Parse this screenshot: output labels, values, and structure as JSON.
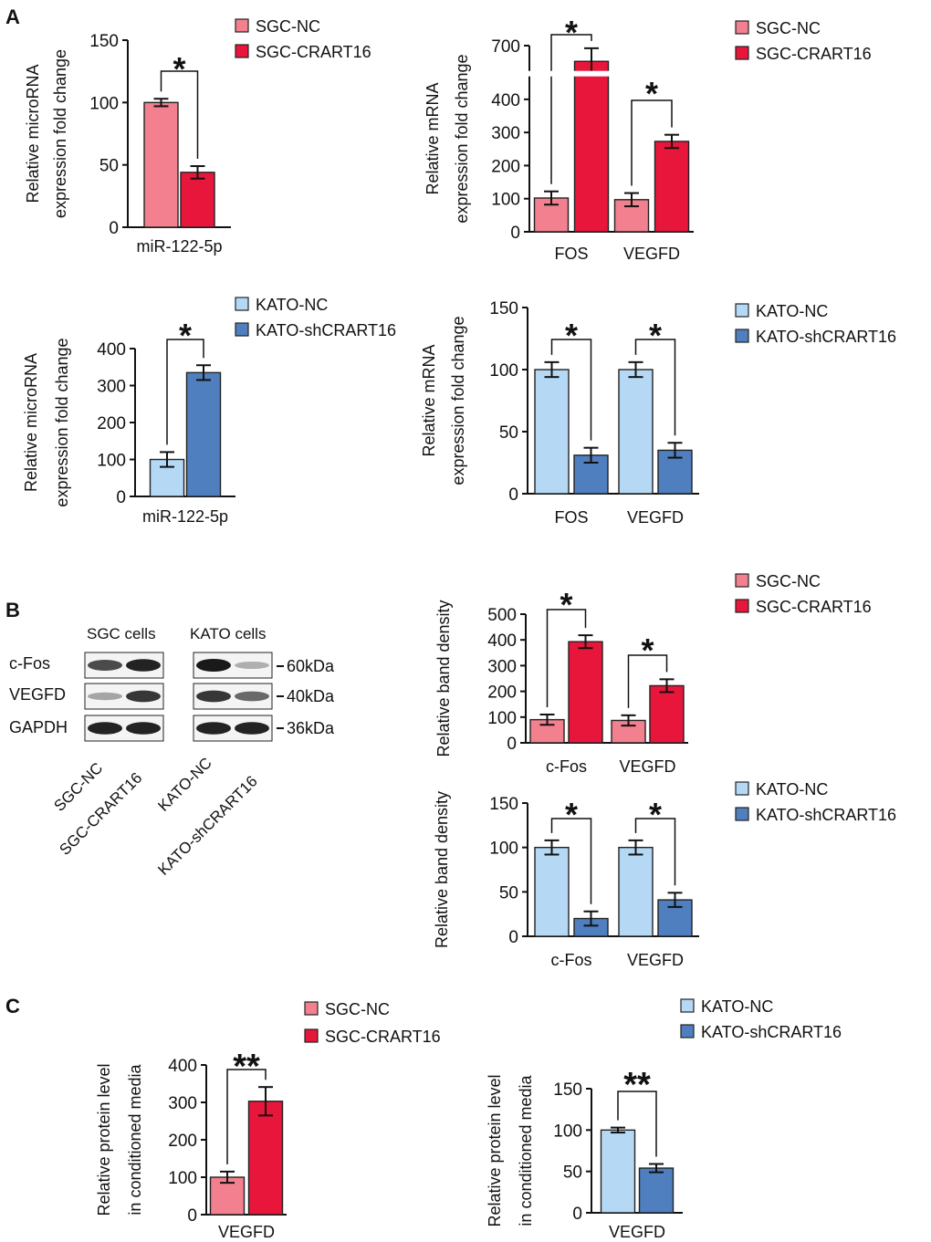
{
  "figure": {
    "panel_labels": [
      "A",
      "B",
      "C"
    ],
    "colors": {
      "sgc_nc": "#f2808f",
      "sgc_crart16": "#e8163b",
      "kato_nc": "#b5d9f5",
      "kato_sh": "#4f7fbf",
      "axis": "#111111"
    }
  },
  "chart_data": [
    {
      "id": "A1",
      "type": "bar",
      "title": "",
      "ylabel": [
        "Relative  microRNA",
        "expression fold change"
      ],
      "xlabel": "",
      "categories": [
        "miR-122-5p"
      ],
      "ylim": [
        0,
        150
      ],
      "yticks": [
        0,
        50,
        100,
        150
      ],
      "series": [
        {
          "name": "SGC-NC",
          "values": [
            100
          ],
          "errors": [
            3
          ],
          "color_key": "sgc_nc"
        },
        {
          "name": "SGC-CRART16",
          "values": [
            44
          ],
          "errors": [
            5
          ],
          "color_key": "sgc_crart16"
        }
      ],
      "significance": [
        "*"
      ]
    },
    {
      "id": "A2",
      "type": "bar",
      "title": "",
      "ylabel": [
        "Relative mRNA",
        "expression fold change"
      ],
      "xlabel": "",
      "categories": [
        "FOS",
        "VEGFD"
      ],
      "ylim": [
        0,
        700
      ],
      "yticks": [
        0,
        100,
        200,
        300,
        400,
        700
      ],
      "axis_break": [
        450,
        650
      ],
      "series": [
        {
          "name": "SGC-NC",
          "values": [
            102,
            97
          ],
          "errors": [
            20,
            20
          ],
          "color_key": "sgc_nc"
        },
        {
          "name": "SGC-CRART16",
          "values": [
            670,
            273
          ],
          "errors": [
            25,
            20
          ],
          "color_key": "sgc_crart16"
        }
      ],
      "significance": [
        "*",
        "*"
      ]
    },
    {
      "id": "A3",
      "type": "bar",
      "title": "",
      "ylabel": [
        "Relative  microRNA",
        "expression fold change"
      ],
      "xlabel": "",
      "categories": [
        "miR-122-5p"
      ],
      "ylim": [
        0,
        400
      ],
      "yticks": [
        0,
        100,
        200,
        300,
        400
      ],
      "series": [
        {
          "name": "KATO-NC",
          "values": [
            100
          ],
          "errors": [
            20
          ],
          "color_key": "kato_nc"
        },
        {
          "name": "KATO-shCRART16",
          "values": [
            335
          ],
          "errors": [
            20
          ],
          "color_key": "kato_sh"
        }
      ],
      "significance": [
        "*"
      ]
    },
    {
      "id": "A4",
      "type": "bar",
      "title": "",
      "ylabel": [
        "Relative mRNA",
        "expression fold change"
      ],
      "xlabel": "",
      "categories": [
        "FOS",
        "VEGFD"
      ],
      "ylim": [
        0,
        150
      ],
      "yticks": [
        0,
        50,
        100,
        150
      ],
      "series": [
        {
          "name": "KATO-NC",
          "values": [
            100,
            100
          ],
          "errors": [
            6,
            6
          ],
          "color_key": "kato_nc"
        },
        {
          "name": "KATO-shCRART16",
          "values": [
            31,
            35
          ],
          "errors": [
            6,
            6
          ],
          "color_key": "kato_sh"
        }
      ],
      "significance": [
        "*",
        "*"
      ]
    },
    {
      "id": "B1",
      "type": "bar",
      "title": "",
      "ylabel": [
        "Relative band density"
      ],
      "xlabel": "",
      "categories": [
        "c-Fos",
        "VEGFD"
      ],
      "ylim": [
        0,
        500
      ],
      "yticks": [
        0,
        100,
        200,
        300,
        400,
        500
      ],
      "series": [
        {
          "name": "SGC-NC",
          "values": [
            90,
            87
          ],
          "errors": [
            20,
            20
          ],
          "color_key": "sgc_nc"
        },
        {
          "name": "SGC-CRART16",
          "values": [
            393,
            222
          ],
          "errors": [
            25,
            25
          ],
          "color_key": "sgc_crart16"
        }
      ],
      "significance": [
        "*",
        "*"
      ]
    },
    {
      "id": "B2",
      "type": "bar",
      "title": "",
      "ylabel": [
        "Relative band density"
      ],
      "xlabel": "",
      "categories": [
        "c-Fos",
        "VEGFD"
      ],
      "ylim": [
        0,
        150
      ],
      "yticks": [
        0,
        50,
        100,
        150
      ],
      "series": [
        {
          "name": "KATO-NC",
          "values": [
            100,
            100
          ],
          "errors": [
            8,
            8
          ],
          "color_key": "kato_nc"
        },
        {
          "name": "KATO-shCRART16",
          "values": [
            20,
            41
          ],
          "errors": [
            8,
            8
          ],
          "color_key": "kato_sh"
        }
      ],
      "significance": [
        "*",
        "*"
      ]
    },
    {
      "id": "C1",
      "type": "bar",
      "title": "",
      "ylabel": [
        "Relative protein level",
        "in conditioned media"
      ],
      "xlabel": "",
      "categories": [
        "VEGFD"
      ],
      "ylim": [
        0,
        400
      ],
      "yticks": [
        0,
        100,
        200,
        300,
        400
      ],
      "series": [
        {
          "name": "SGC-NC",
          "values": [
            100
          ],
          "errors": [
            15
          ],
          "color_key": "sgc_nc"
        },
        {
          "name": "SGC-CRART16",
          "values": [
            303
          ],
          "errors": [
            38
          ],
          "color_key": "sgc_crart16"
        }
      ],
      "significance": [
        "**"
      ]
    },
    {
      "id": "C2",
      "type": "bar",
      "title": "",
      "ylabel": [
        "Relative protein level",
        "in conditioned media"
      ],
      "xlabel": "",
      "categories": [
        "VEGFD"
      ],
      "ylim": [
        0,
        150
      ],
      "yticks": [
        0,
        50,
        100,
        150
      ],
      "series": [
        {
          "name": "KATO-NC",
          "values": [
            100
          ],
          "errors": [
            3
          ],
          "color_key": "kato_nc"
        },
        {
          "name": "KATO-shCRART16",
          "values": [
            54
          ],
          "errors": [
            5
          ],
          "color_key": "kato_sh"
        }
      ],
      "significance": [
        "**"
      ]
    }
  ],
  "western_blot": {
    "group_titles": [
      "SGC cells",
      "KATO cells"
    ],
    "rows": [
      {
        "protein": "c-Fos",
        "size": "60kDa",
        "bands": [
          0.75,
          0.95,
          1.0,
          0.25
        ]
      },
      {
        "protein": "VEGFD",
        "size": "40kDa",
        "bands": [
          0.3,
          0.85,
          0.85,
          0.6
        ]
      },
      {
        "protein": "GAPDH",
        "size": "36kDa",
        "bands": [
          0.95,
          0.95,
          0.95,
          0.95
        ]
      }
    ],
    "lane_labels": [
      "SGC-NC",
      "SGC-CRART16",
      "KATO-NC",
      "KATO-shCRART16"
    ]
  }
}
